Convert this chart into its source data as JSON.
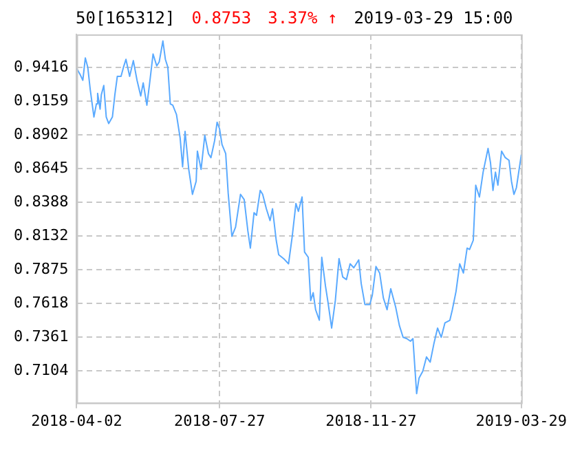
{
  "chart_data": {
    "type": "line",
    "title": "50[165312]",
    "annotations": [
      "0.8753",
      "3.37% ↑",
      "2019-03-29 15:00"
    ],
    "x": [
      "2018-04-02",
      "2018-04-05",
      "2018-04-07",
      "2018-04-09",
      "2018-04-11",
      "2018-04-13",
      "2018-04-16",
      "2018-04-18",
      "2018-04-19",
      "2018-04-21",
      "2018-04-22",
      "2018-04-24",
      "2018-04-26",
      "2018-04-28",
      "2018-05-01",
      "2018-05-03",
      "2018-05-05",
      "2018-05-08",
      "2018-05-10",
      "2018-05-12",
      "2018-05-15",
      "2018-05-18",
      "2018-05-21",
      "2018-05-24",
      "2018-05-26",
      "2018-05-29",
      "2018-05-31",
      "2018-06-03",
      "2018-06-06",
      "2018-06-08",
      "2018-06-11",
      "2018-06-13",
      "2018-06-15",
      "2018-06-17",
      "2018-06-19",
      "2018-06-22",
      "2018-06-25",
      "2018-06-27",
      "2018-06-29",
      "2018-07-02",
      "2018-07-05",
      "2018-07-08",
      "2018-07-09",
      "2018-07-12",
      "2018-07-15",
      "2018-07-18",
      "2018-07-20",
      "2018-07-23",
      "2018-07-25",
      "2018-07-27",
      "2018-07-29",
      "2018-08-01",
      "2018-08-03",
      "2018-08-06",
      "2018-08-09",
      "2018-08-13",
      "2018-08-16",
      "2018-08-19",
      "2018-08-21",
      "2018-08-24",
      "2018-08-26",
      "2018-08-29",
      "2018-08-31",
      "2018-09-03",
      "2018-09-06",
      "2018-09-08",
      "2018-09-11",
      "2018-09-13",
      "2018-09-17",
      "2018-09-21",
      "2018-09-24",
      "2018-09-27",
      "2018-09-29",
      "2018-10-02",
      "2018-10-04",
      "2018-10-07",
      "2018-10-09",
      "2018-10-11",
      "2018-10-13",
      "2018-10-16",
      "2018-10-18",
      "2018-10-21",
      "2018-10-23",
      "2018-10-26",
      "2018-10-29",
      "2018-11-01",
      "2018-11-04",
      "2018-11-07",
      "2018-11-10",
      "2018-11-13",
      "2018-11-17",
      "2018-11-19",
      "2018-11-22",
      "2018-11-26",
      "2018-11-28",
      "2018-12-01",
      "2018-12-04",
      "2018-12-07",
      "2018-12-10",
      "2018-12-13",
      "2018-12-17",
      "2018-12-20",
      "2018-12-23",
      "2018-12-26",
      "2018-12-29",
      "2018-12-31",
      "2019-01-03",
      "2019-01-05",
      "2019-01-08",
      "2019-01-11",
      "2019-01-14",
      "2019-01-17",
      "2019-01-20",
      "2019-01-23",
      "2019-01-26",
      "2019-01-30",
      "2019-02-01",
      "2019-02-04",
      "2019-02-07",
      "2019-02-10",
      "2019-02-13",
      "2019-02-15",
      "2019-02-18",
      "2019-02-20",
      "2019-02-23",
      "2019-02-26",
      "2019-03-02",
      "2019-03-04",
      "2019-03-06",
      "2019-03-08",
      "2019-03-10",
      "2019-03-13",
      "2019-03-16",
      "2019-03-19",
      "2019-03-21",
      "2019-03-23",
      "2019-03-25",
      "2019-03-29"
    ],
    "series": [
      {
        "color": "#5aaaff",
        "values": [
          0.941,
          0.936,
          0.932,
          0.949,
          0.942,
          0.925,
          0.904,
          0.914,
          0.922,
          0.91,
          0.921,
          0.928,
          0.904,
          0.899,
          0.904,
          0.921,
          0.935,
          0.935,
          0.942,
          0.948,
          0.935,
          0.947,
          0.932,
          0.92,
          0.93,
          0.913,
          0.928,
          0.952,
          0.943,
          0.946,
          0.962,
          0.948,
          0.942,
          0.914,
          0.913,
          0.906,
          0.888,
          0.866,
          0.893,
          0.864,
          0.845,
          0.855,
          0.878,
          0.864,
          0.89,
          0.876,
          0.873,
          0.886,
          0.9,
          0.895,
          0.883,
          0.876,
          0.846,
          0.813,
          0.82,
          0.845,
          0.841,
          0.817,
          0.804,
          0.831,
          0.829,
          0.848,
          0.845,
          0.834,
          0.825,
          0.834,
          0.81,
          0.799,
          0.796,
          0.792,
          0.813,
          0.838,
          0.832,
          0.843,
          0.801,
          0.797,
          0.764,
          0.77,
          0.757,
          0.749,
          0.797,
          0.775,
          0.763,
          0.743,
          0.764,
          0.796,
          0.782,
          0.78,
          0.792,
          0.789,
          0.795,
          0.777,
          0.761,
          0.761,
          0.768,
          0.79,
          0.785,
          0.766,
          0.757,
          0.773,
          0.759,
          0.745,
          0.736,
          0.735,
          0.733,
          0.735,
          0.693,
          0.705,
          0.71,
          0.721,
          0.717,
          0.731,
          0.743,
          0.736,
          0.747,
          0.749,
          0.757,
          0.771,
          0.792,
          0.785,
          0.804,
          0.803,
          0.81,
          0.852,
          0.843,
          0.862,
          0.88,
          0.869,
          0.848,
          0.862,
          0.852,
          0.878,
          0.873,
          0.871,
          0.855,
          0.845,
          0.85,
          0.8753
        ]
      }
    ],
    "ylim": [
      0.686,
      0.967
    ],
    "yticks": [
      0.7104,
      0.7361,
      0.7618,
      0.7875,
      0.8132,
      0.8388,
      0.8645,
      0.8902,
      0.9159,
      0.9416
    ],
    "xlim": [
      "2018-04-02",
      "2019-03-29"
    ],
    "xticks": [
      "2018-04-02",
      "2018-07-27",
      "2018-11-27",
      "2019-03-29"
    ],
    "grid": true,
    "line_style": "solid",
    "marker": "none"
  }
}
